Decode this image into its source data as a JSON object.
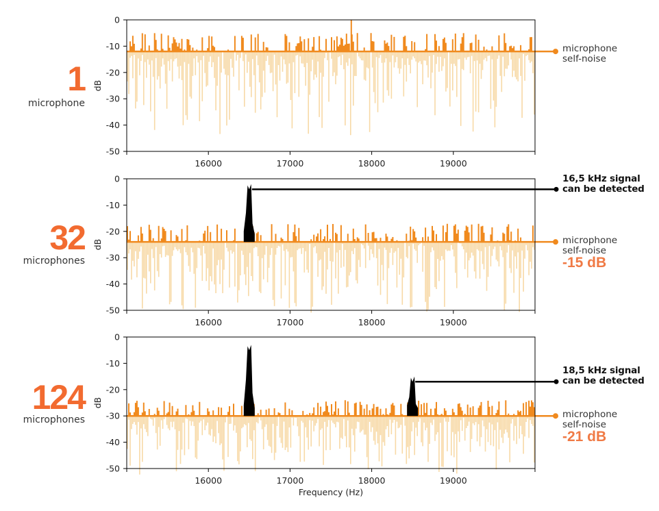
{
  "colors": {
    "accent": "#f26b30",
    "signal_line": "#f08a1e",
    "noise_fill": "#f7d9a6",
    "peak": "#000000",
    "axis": "#000000",
    "text": "#333333"
  },
  "panels": [
    {
      "count": "1",
      "unit_label": "microphone",
      "annotations": [
        {
          "type": "self-noise",
          "line1": "microphone",
          "line2": "self-noise",
          "db_label": ""
        }
      ]
    },
    {
      "count": "32",
      "unit_label": "microphones",
      "annotations": [
        {
          "type": "signal",
          "line1": "16,5 kHz signal",
          "line2": "can be detected"
        },
        {
          "type": "self-noise",
          "line1": "microphone",
          "line2": "self-noise",
          "db_label": "-15 dB"
        }
      ]
    },
    {
      "count": "124",
      "unit_label": "microphones",
      "annotations": [
        {
          "type": "signal",
          "line1": "18,5 kHz signal",
          "line2": "can be detected"
        },
        {
          "type": "self-noise",
          "line1": "microphone",
          "line2": "self-noise",
          "db_label": "-21 dB"
        }
      ]
    }
  ],
  "chart_data": [
    {
      "type": "line",
      "title": "1 microphone",
      "xlabel": "",
      "ylabel": "dB",
      "xlim": [
        15000,
        20000
      ],
      "ylim": [
        -50,
        0
      ],
      "xticks": [
        16000,
        17000,
        18000,
        19000
      ],
      "yticks": [
        0,
        -10,
        -20,
        -30,
        -40,
        -50
      ],
      "noise_floor_db": -12,
      "noise_peak_max_db": -5,
      "noise_dip_min_db": -41,
      "peaks": [],
      "annotations": [
        {
          "text": "microphone self-noise",
          "y": -12
        }
      ]
    },
    {
      "type": "line",
      "title": "32 microphones",
      "xlabel": "",
      "ylabel": "dB",
      "xlim": [
        15000,
        20000
      ],
      "ylim": [
        -50,
        0
      ],
      "xticks": [
        16000,
        17000,
        18000,
        19000
      ],
      "yticks": [
        0,
        -10,
        -20,
        -30,
        -40,
        -50
      ],
      "noise_floor_db": -24,
      "noise_peak_max_db": -17,
      "noise_dip_min_db": -49,
      "peaks": [
        {
          "freq_hz": 16500,
          "db": -4,
          "label": "16,5 kHz signal can be detected"
        }
      ],
      "annotations": [
        {
          "text": "microphone self-noise -15 dB",
          "y": -24
        }
      ]
    },
    {
      "type": "line",
      "title": "124 microphones",
      "xlabel": "Frequency (Hz)",
      "ylabel": "dB",
      "xlim": [
        15000,
        20000
      ],
      "ylim": [
        -50,
        0
      ],
      "xticks": [
        16000,
        17000,
        18000,
        19000
      ],
      "yticks": [
        0,
        -10,
        -20,
        -30,
        -40,
        -50
      ],
      "noise_floor_db": -30,
      "noise_peak_max_db": -24,
      "noise_dip_min_db": -49,
      "peaks": [
        {
          "freq_hz": 16500,
          "db": -5,
          "label": ""
        },
        {
          "freq_hz": 18500,
          "db": -17,
          "label": "18,5 kHz signal can be detected"
        }
      ],
      "annotations": [
        {
          "text": "microphone self-noise -21 dB",
          "y": -30
        }
      ]
    }
  ]
}
